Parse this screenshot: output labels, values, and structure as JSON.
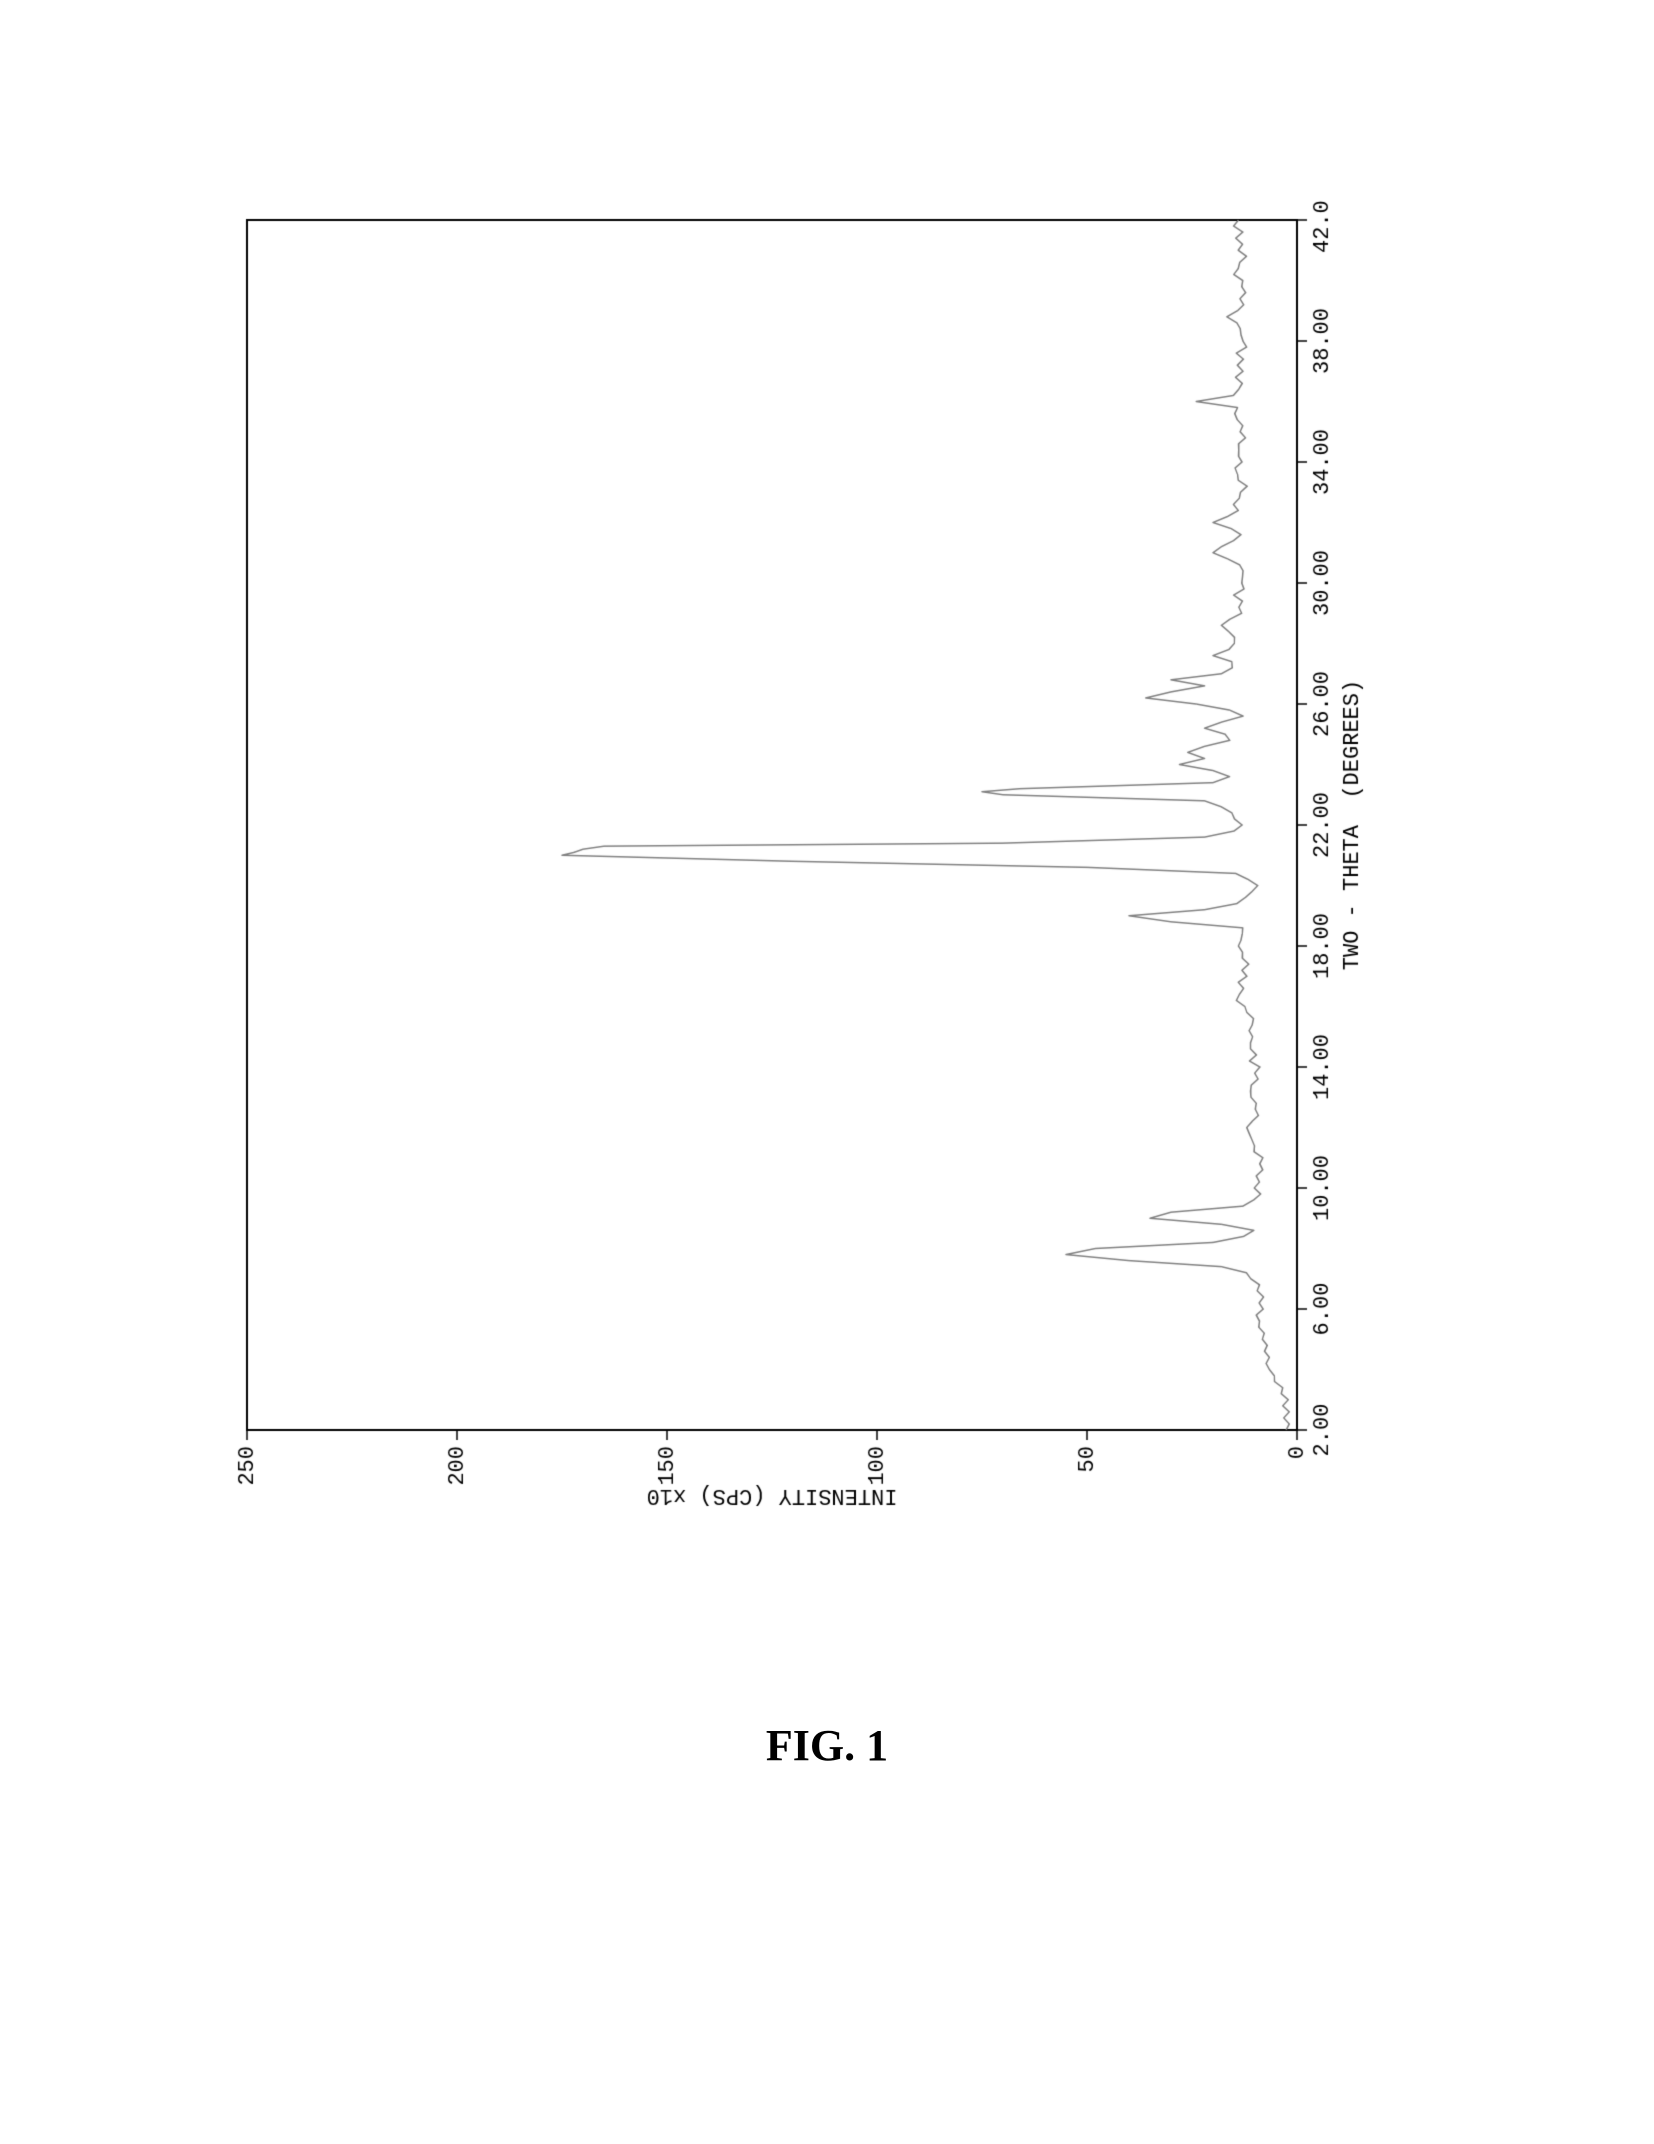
{
  "figure": {
    "caption": "FIG. 1",
    "chart": {
      "type": "line",
      "orientation": "rotated-90-ccw",
      "xlabel": "TWO - THETA  (DEGREES)",
      "ylabel": "INTENSITY (CPS) x10",
      "xlim": [
        2.0,
        42.0
      ],
      "ylim": [
        0,
        250
      ],
      "xticks": [
        2.0,
        6.0,
        10.0,
        14.0,
        18.0,
        22.0,
        26.0,
        30.0,
        34.0,
        38.0,
        42.0
      ],
      "xtick_labels": [
        "2.00",
        "6.00",
        "10.00",
        "14.00",
        "18.00",
        "22.00",
        "26.00",
        "30.00",
        "34.00",
        "38.00",
        "42.00"
      ],
      "yticks": [
        0,
        50,
        100,
        150,
        200,
        250
      ],
      "ytick_labels": [
        "0",
        "50",
        "100",
        "150",
        "200",
        "250"
      ],
      "font_family": "Courier New",
      "label_fontsize": 22,
      "tick_fontsize": 22,
      "background_color": "#ffffff",
      "border_color": "#000000",
      "border_width": 2,
      "tick_color": "#000000",
      "line_color": "#808080",
      "line_width": 1.5,
      "grid": false,
      "data": {
        "x": [
          2.0,
          2.2,
          2.4,
          2.6,
          2.8,
          3.0,
          3.2,
          3.4,
          3.6,
          3.8,
          4.0,
          4.2,
          4.4,
          4.6,
          4.8,
          5.0,
          5.2,
          5.4,
          5.6,
          5.8,
          6.0,
          6.2,
          6.4,
          6.6,
          6.8,
          7.0,
          7.2,
          7.4,
          7.6,
          7.8,
          8.0,
          8.2,
          8.4,
          8.6,
          8.8,
          9.0,
          9.2,
          9.4,
          9.6,
          9.8,
          10.0,
          10.2,
          10.4,
          10.6,
          10.8,
          11.0,
          11.2,
          11.4,
          11.6,
          11.8,
          12.0,
          12.2,
          12.4,
          12.6,
          12.8,
          13.0,
          13.2,
          13.4,
          13.6,
          13.8,
          14.0,
          14.2,
          14.4,
          14.6,
          14.8,
          15.0,
          15.2,
          15.4,
          15.6,
          15.8,
          16.0,
          16.2,
          16.4,
          16.6,
          16.8,
          17.0,
          17.2,
          17.4,
          17.6,
          17.8,
          18.0,
          18.2,
          18.4,
          18.6,
          18.8,
          19.0,
          19.2,
          19.4,
          19.6,
          19.8,
          20.0,
          20.2,
          20.4,
          20.6,
          20.8,
          21.0,
          21.1,
          21.2,
          21.3,
          21.4,
          21.6,
          21.8,
          22.0,
          22.2,
          22.4,
          22.6,
          22.8,
          23.0,
          23.1,
          23.2,
          23.4,
          23.6,
          23.8,
          24.0,
          24.2,
          24.4,
          24.6,
          24.8,
          25.0,
          25.2,
          25.4,
          25.6,
          25.8,
          26.0,
          26.2,
          26.4,
          26.6,
          26.8,
          27.0,
          27.2,
          27.4,
          27.6,
          27.8,
          28.0,
          28.2,
          28.4,
          28.6,
          28.8,
          29.0,
          29.2,
          29.4,
          29.6,
          29.8,
          30.0,
          30.2,
          30.4,
          30.6,
          30.8,
          31.0,
          31.2,
          31.4,
          31.6,
          31.8,
          32.0,
          32.2,
          32.4,
          32.6,
          32.8,
          33.0,
          33.2,
          33.4,
          33.6,
          33.8,
          34.0,
          34.2,
          34.4,
          34.6,
          34.8,
          35.0,
          35.2,
          35.4,
          35.6,
          35.8,
          36.0,
          36.2,
          36.4,
          36.6,
          36.8,
          37.0,
          37.2,
          37.4,
          37.6,
          37.8,
          38.0,
          38.2,
          38.4,
          38.6,
          38.8,
          39.0,
          39.2,
          39.4,
          39.6,
          39.8,
          40.0,
          40.2,
          40.4,
          40.6,
          40.8,
          41.0,
          41.2,
          41.4,
          41.6,
          41.8,
          42.0
        ],
        "y": [
          2,
          2,
          2,
          2,
          3,
          3,
          4,
          4,
          5,
          5,
          6,
          7,
          7,
          8,
          8,
          8,
          8,
          8,
          9,
          9,
          9,
          9,
          9,
          9,
          9,
          10,
          12,
          18,
          40,
          55,
          48,
          20,
          12,
          10,
          18,
          35,
          30,
          14,
          10,
          9,
          9,
          9,
          9,
          9,
          9,
          9,
          10,
          10,
          10,
          11,
          12,
          11,
          10,
          10,
          10,
          10,
          11,
          10,
          10,
          10,
          10,
          11,
          10,
          10,
          11,
          10,
          12,
          11,
          11,
          12,
          12,
          14,
          13,
          13,
          14,
          13,
          13,
          12,
          12,
          13,
          13,
          14,
          13,
          14,
          30,
          40,
          22,
          14,
          12,
          11,
          10,
          12,
          15,
          50,
          120,
          175,
          172,
          170,
          165,
          70,
          22,
          14,
          13,
          14,
          16,
          18,
          22,
          70,
          75,
          66,
          20,
          16,
          20,
          28,
          22,
          26,
          22,
          16,
          16,
          22,
          18,
          14,
          16,
          24,
          36,
          30,
          22,
          30,
          18,
          16,
          16,
          20,
          16,
          14,
          15,
          16,
          18,
          16,
          14,
          13,
          13,
          14,
          13,
          13,
          14,
          13,
          14,
          16,
          20,
          18,
          15,
          14,
          16,
          20,
          16,
          14,
          14,
          14,
          13,
          13,
          14,
          15,
          14,
          13,
          13,
          14,
          14,
          13,
          14,
          13,
          14,
          14,
          14,
          24,
          16,
          14,
          14,
          14,
          13,
          13,
          13,
          14,
          13,
          13,
          14,
          13,
          14,
          16,
          14,
          13,
          14,
          13,
          13,
          13,
          14,
          14,
          13,
          13,
          14,
          14,
          14,
          13,
          14,
          14
        ]
      }
    }
  }
}
